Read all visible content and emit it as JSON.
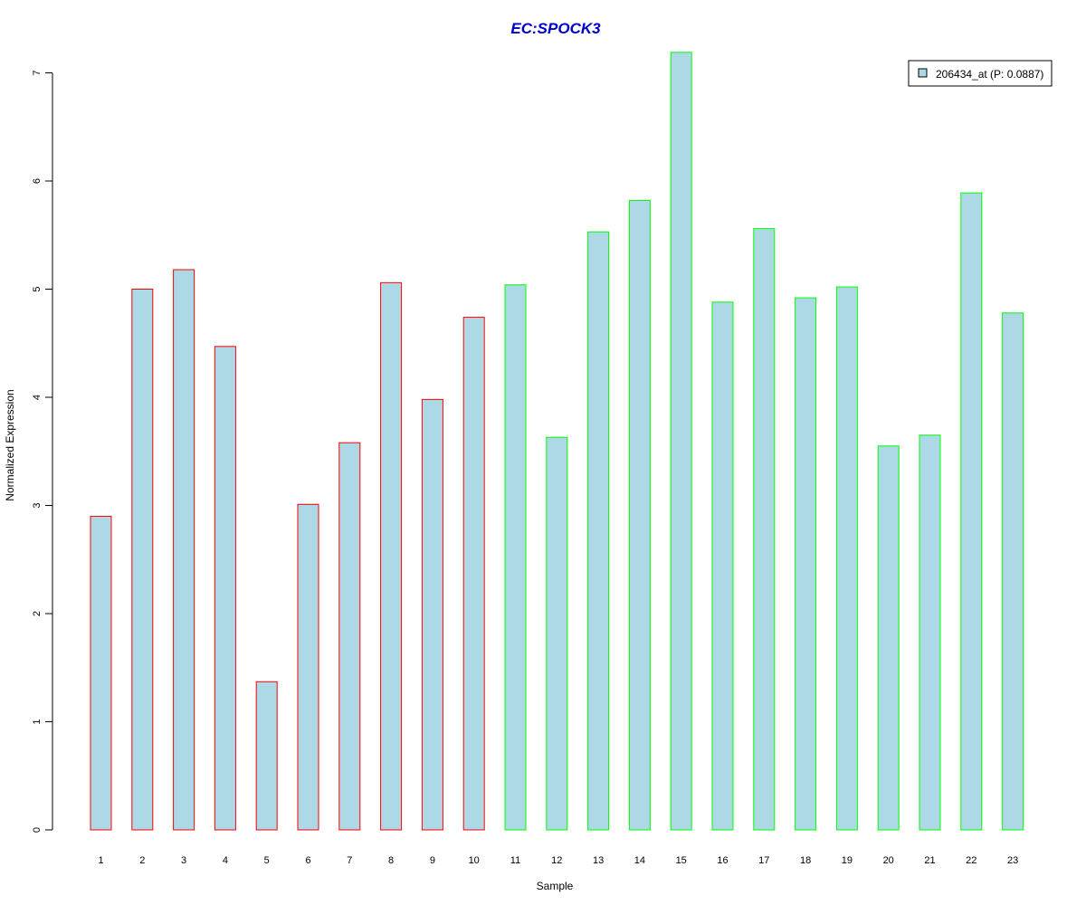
{
  "chart_data": {
    "type": "bar",
    "title": "EC:SPOCK3",
    "xlabel": "Sample",
    "ylabel": "Normalized Expression",
    "categories": [
      "1",
      "2",
      "3",
      "4",
      "5",
      "6",
      "7",
      "8",
      "9",
      "10",
      "11",
      "12",
      "13",
      "14",
      "15",
      "16",
      "17",
      "18",
      "19",
      "20",
      "21",
      "22",
      "23"
    ],
    "series": [
      {
        "name": "206434_at (P: 0.0887)",
        "values": [
          2.9,
          5.0,
          5.18,
          4.47,
          1.37,
          3.01,
          3.58,
          5.06,
          3.98,
          4.74,
          5.04,
          3.63,
          5.53,
          5.82,
          7.19,
          4.88,
          5.56,
          4.92,
          5.02,
          3.55,
          3.65,
          5.89,
          4.78
        ]
      }
    ],
    "group_of_sample": [
      "red",
      "red",
      "red",
      "red",
      "red",
      "red",
      "red",
      "red",
      "red",
      "red",
      "green",
      "green",
      "green",
      "green",
      "green",
      "green",
      "green",
      "green",
      "green",
      "green",
      "green",
      "green",
      "green"
    ],
    "ylim": [
      0,
      7.2
    ],
    "yticks": [
      0,
      1,
      2,
      3,
      4,
      5,
      6,
      7
    ],
    "grid": false,
    "legend_position": "top-right",
    "colors": {
      "bar_fill": "#add8e6",
      "group_border_red": "#ff0000",
      "group_border_green": "#00ff00",
      "title": "#0000cd",
      "axis": "#000000"
    }
  }
}
